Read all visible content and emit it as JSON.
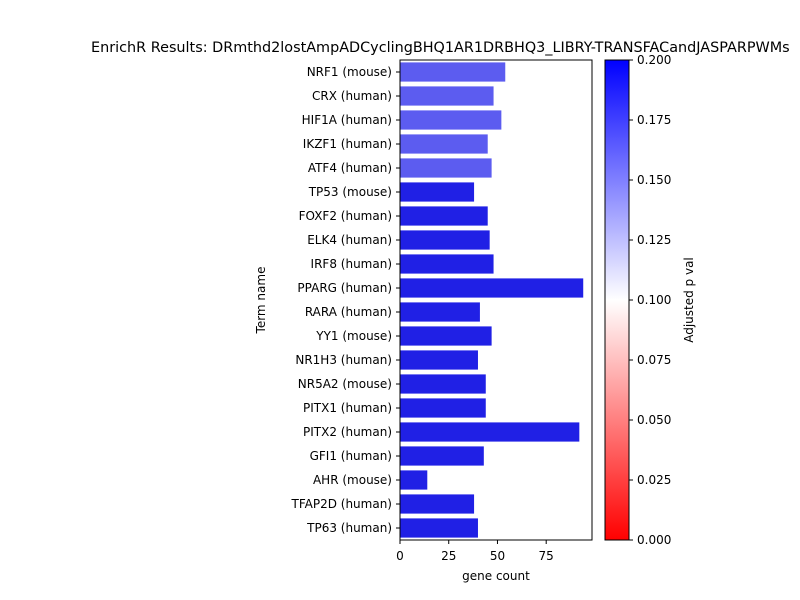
{
  "chart_data": {
    "type": "bar",
    "orientation": "horizontal",
    "title": "EnrichR Results: DRmthd2lostAmpADCyclingBHQ1AR1DRBHQ3_LIBRY-TRANSFACandJASPARPWMs",
    "xlabel": "gene count",
    "ylabel": "Term name",
    "xlim": [
      0,
      98.5
    ],
    "xticks": [
      0,
      25,
      50,
      75
    ],
    "categories": [
      "NRF1 (mouse)",
      "CRX (human)",
      "HIF1A (human)",
      "IKZF1 (human)",
      "ATF4 (human)",
      "TP53 (mouse)",
      "FOXF2 (human)",
      "ELK4 (human)",
      "IRF8 (human)",
      "PPARG (human)",
      "RARA (human)",
      "YY1 (mouse)",
      "NR1H3 (human)",
      "NR5A2 (mouse)",
      "PITX1 (human)",
      "PITX2 (human)",
      "GFI1 (human)",
      "AHR (mouse)",
      "TFAP2D (human)",
      "TP63 (human)"
    ],
    "values": [
      54,
      48,
      52,
      45,
      47,
      38,
      45,
      46,
      48,
      94,
      41,
      47,
      40,
      44,
      44,
      92,
      43,
      14,
      38,
      40
    ],
    "bar_colors": [
      "#5c5cf0",
      "#5c5cf0",
      "#5c5cf0",
      "#5c5cf0",
      "#5c5cf0",
      "#2020e5",
      "#2020e5",
      "#2020e5",
      "#2020e5",
      "#2020e5",
      "#2020e5",
      "#2020e5",
      "#2020e5",
      "#2020e5",
      "#2020e5",
      "#2020e5",
      "#2020e5",
      "#2020e5",
      "#2020e5",
      "#2020e5"
    ],
    "colorbar": {
      "label": "Adjusted p val",
      "range": [
        0.0,
        0.2
      ],
      "ticks": [
        "0.000",
        "0.025",
        "0.050",
        "0.075",
        "0.100",
        "0.125",
        "0.150",
        "0.175",
        "0.200"
      ],
      "colormap": [
        "#ff0000",
        "#ffffff",
        "#0000ff"
      ]
    }
  }
}
